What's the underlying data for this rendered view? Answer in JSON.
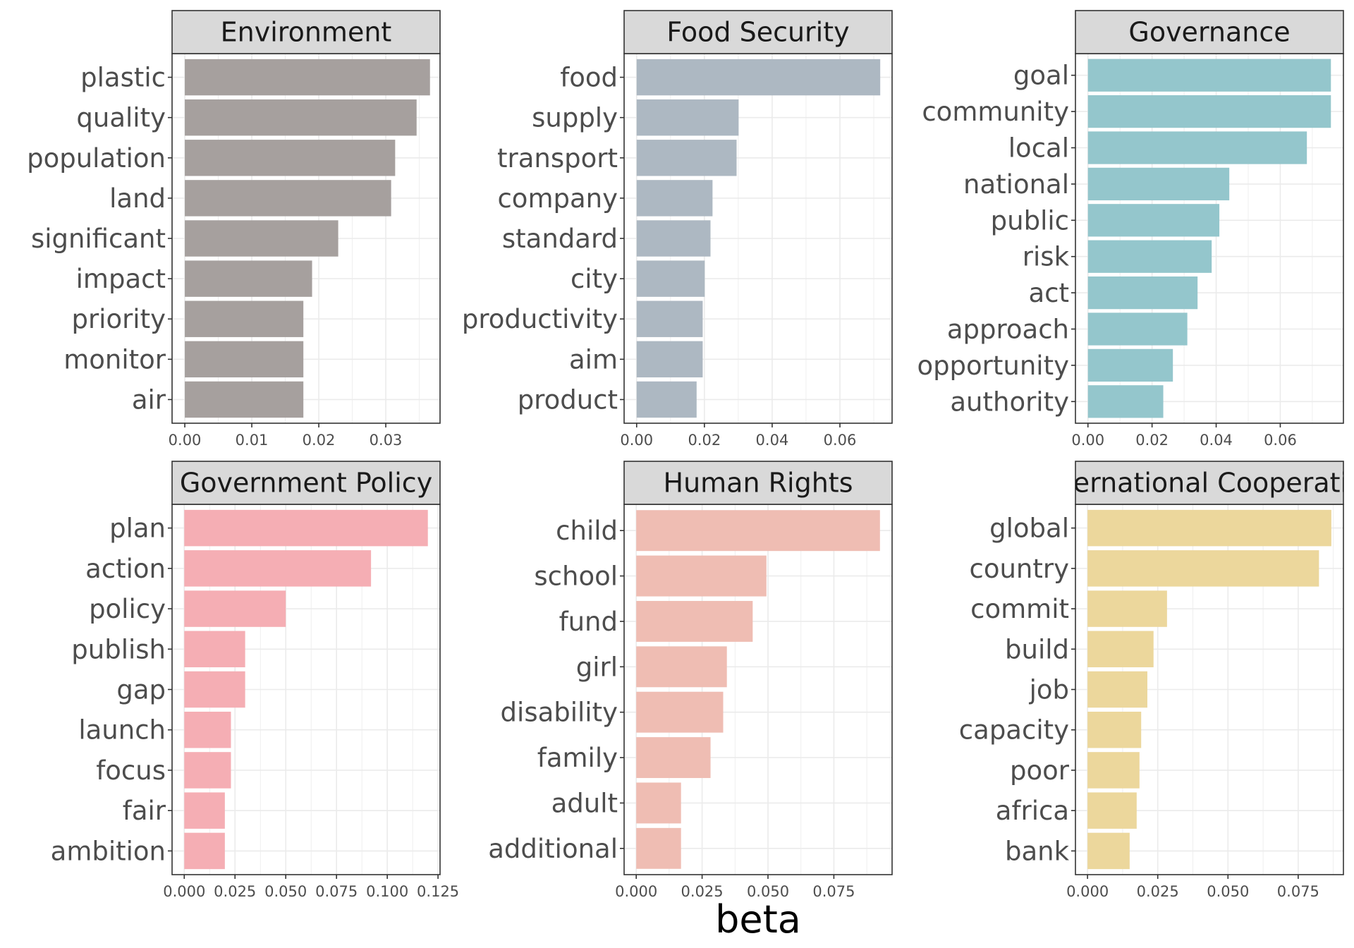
{
  "chart_data": {
    "type": "bar",
    "orientation": "horizontal",
    "layout": "facet-grid-2x3",
    "xlabel": "beta",
    "grid": true,
    "panels": [
      {
        "title": "Environment",
        "color": "#A6A09E",
        "categories": [
          "plastic",
          "quality",
          "population",
          "land",
          "significant",
          "impact",
          "priority",
          "monitor",
          "air"
        ],
        "values": [
          0.0366,
          0.0346,
          0.0314,
          0.0308,
          0.0229,
          0.019,
          0.0177,
          0.0177,
          0.0177
        ],
        "xlim": [
          -0.0019,
          0.0381
        ],
        "ticks": [
          0,
          0.01,
          0.02,
          0.03
        ],
        "tick_labels": [
          "0.00",
          "0.01",
          "0.02",
          "0.03"
        ]
      },
      {
        "title": "Food Security",
        "color": "#ADB8C2",
        "categories": [
          "food",
          "supply",
          "transport",
          "company",
          "standard",
          "city",
          "productivity",
          "aim",
          "product"
        ],
        "values": [
          0.0719,
          0.0301,
          0.0295,
          0.0224,
          0.0218,
          0.0201,
          0.0195,
          0.0195,
          0.0177
        ],
        "xlim": [
          -0.0037,
          0.0754
        ],
        "ticks": [
          0,
          0.02,
          0.04,
          0.06
        ],
        "tick_labels": [
          "0.00",
          "0.02",
          "0.04",
          "0.06"
        ]
      },
      {
        "title": "Governance",
        "color": "#94C6CC",
        "categories": [
          "goal",
          "community",
          "local",
          "national",
          "public",
          "risk",
          "act",
          "approach",
          "opportunity",
          "authority"
        ],
        "values": [
          0.0758,
          0.0758,
          0.0683,
          0.0441,
          0.041,
          0.0386,
          0.0342,
          0.031,
          0.0265,
          0.0235
        ],
        "xlim": [
          -0.0039,
          0.0797
        ],
        "ticks": [
          0,
          0.02,
          0.04,
          0.06
        ],
        "tick_labels": [
          "0.00",
          "0.02",
          "0.04",
          "0.06"
        ]
      },
      {
        "title": "Government Policy",
        "color": "#F5AEB4",
        "categories": [
          "plan",
          "action",
          "policy",
          "publish",
          "gap",
          "launch",
          "focus",
          "fair",
          "ambition"
        ],
        "values": [
          0.12,
          0.092,
          0.05,
          0.03,
          0.03,
          0.023,
          0.023,
          0.02,
          0.02
        ],
        "xlim": [
          -0.006,
          0.126
        ],
        "ticks": [
          0,
          0.025,
          0.05,
          0.075,
          0.1,
          0.125
        ],
        "tick_labels": [
          "0.000",
          "0.025",
          "0.050",
          "0.075",
          "0.100",
          "0.125"
        ]
      },
      {
        "title": "Human Rights",
        "color": "#EFBDB3",
        "categories": [
          "child",
          "school",
          "fund",
          "girl",
          "disability",
          "family",
          "adult",
          "additional"
        ],
        "values": [
          0.0925,
          0.0494,
          0.0442,
          0.0344,
          0.033,
          0.0282,
          0.017,
          0.017
        ],
        "xlim": [
          -0.0046,
          0.0971
        ],
        "ticks": [
          0,
          0.025,
          0.05,
          0.075
        ],
        "tick_labels": [
          "0.000",
          "0.025",
          "0.050",
          "0.075"
        ]
      },
      {
        "title": "International Cooperation",
        "color": "#ECD79C",
        "categories": [
          "global",
          "country",
          "commit",
          "build",
          "job",
          "capacity",
          "poor",
          "africa",
          "bank"
        ],
        "values": [
          0.0868,
          0.0824,
          0.0283,
          0.0235,
          0.0213,
          0.0191,
          0.0185,
          0.0175,
          0.015
        ],
        "xlim": [
          -0.0043,
          0.0911
        ],
        "ticks": [
          0,
          0.025,
          0.05,
          0.075
        ],
        "tick_labels": [
          "0.000",
          "0.025",
          "0.050",
          "0.075"
        ]
      }
    ]
  }
}
